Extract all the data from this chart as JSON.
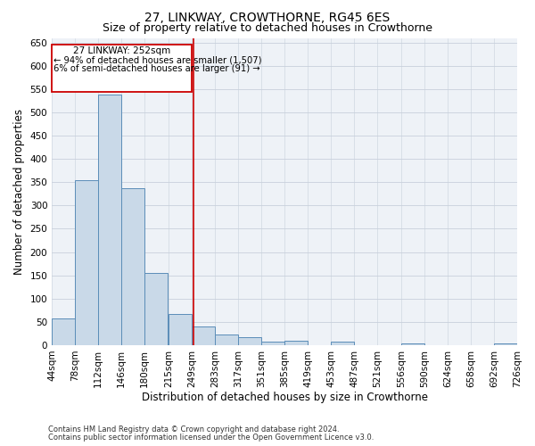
{
  "title": "27, LINKWAY, CROWTHORNE, RG45 6ES",
  "subtitle": "Size of property relative to detached houses in Crowthorne",
  "xlabel": "Distribution of detached houses by size in Crowthorne",
  "ylabel": "Number of detached properties",
  "footnote1": "Contains HM Land Registry data © Crown copyright and database right 2024.",
  "footnote2": "Contains public sector information licensed under the Open Government Licence v3.0.",
  "annotation_line1": "27 LINKWAY: 252sqm",
  "annotation_line2": "← 94% of detached houses are smaller (1,507)",
  "annotation_line3": "6% of semi-detached houses are larger (91) →",
  "property_size": 252,
  "bin_edges": [
    44,
    78,
    112,
    146,
    180,
    215,
    249,
    283,
    317,
    351,
    385,
    419,
    453,
    487,
    521,
    556,
    590,
    624,
    658,
    692,
    726
  ],
  "bar_heights": [
    57,
    354,
    539,
    338,
    155,
    67,
    40,
    23,
    17,
    7,
    10,
    0,
    8,
    0,
    0,
    4,
    0,
    0,
    0,
    4
  ],
  "bar_color": "#c9d9e8",
  "bar_edge_color": "#5b8db8",
  "vline_color": "#cc0000",
  "vline_x": 252,
  "ylim": [
    0,
    660
  ],
  "yticks": [
    0,
    50,
    100,
    150,
    200,
    250,
    300,
    350,
    400,
    450,
    500,
    550,
    600,
    650
  ],
  "grid_color": "#c8d0dc",
  "background_color": "#eef2f7",
  "annotation_box_color": "#ffffff",
  "annotation_box_edge": "#cc0000",
  "title_fontsize": 10,
  "subtitle_fontsize": 9,
  "axis_label_fontsize": 8.5,
  "tick_fontsize": 7.5,
  "annotation_fontsize": 7.5
}
